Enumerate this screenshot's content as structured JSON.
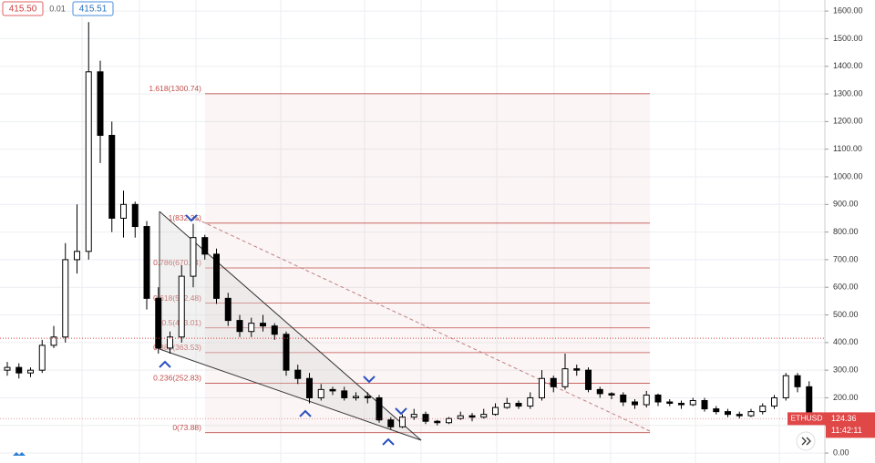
{
  "chart_data": {
    "type": "candlestick",
    "symbol": "ETHUSD",
    "header": {
      "bid": {
        "value": 415.5,
        "label": "415.50"
      },
      "spread": "0.01",
      "ask": {
        "value": 415.51,
        "label": "415.51"
      }
    },
    "last_price": {
      "value": 124.36,
      "label": "124.36"
    },
    "countdown": "11:42:11",
    "open": [
      300,
      310,
      290,
      300,
      390,
      420,
      700,
      730,
      1380,
      1150,
      850,
      900,
      820,
      560,
      380,
      420,
      640,
      780,
      720,
      560,
      480,
      440,
      470,
      460,
      430,
      300,
      270,
      200,
      230,
      225,
      200,
      205,
      200,
      120,
      95,
      130,
      140,
      115,
      110,
      125,
      135,
      130,
      140,
      165,
      180,
      170,
      200,
      270,
      240,
      305,
      300,
      230,
      215,
      210,
      185,
      175,
      210,
      185,
      180,
      175,
      190,
      160,
      150,
      140,
      135,
      150,
      170,
      200,
      280,
      240
    ],
    "high": [
      330,
      325,
      310,
      410,
      460,
      760,
      900,
      1560,
      1420,
      1200,
      950,
      910,
      840,
      600,
      440,
      680,
      830,
      790,
      740,
      580,
      500,
      490,
      500,
      470,
      440,
      320,
      290,
      250,
      240,
      240,
      220,
      220,
      210,
      130,
      140,
      160,
      150,
      120,
      130,
      150,
      145,
      160,
      180,
      200,
      190,
      220,
      300,
      280,
      360,
      320,
      310,
      240,
      220,
      220,
      195,
      225,
      215,
      195,
      190,
      200,
      200,
      170,
      160,
      150,
      160,
      180,
      210,
      290,
      290,
      260
    ],
    "low": [
      280,
      270,
      275,
      290,
      380,
      400,
      650,
      700,
      1050,
      800,
      780,
      780,
      520,
      360,
      360,
      400,
      600,
      700,
      540,
      460,
      420,
      420,
      440,
      410,
      280,
      250,
      180,
      190,
      210,
      190,
      190,
      180,
      110,
      85,
      90,
      120,
      105,
      100,
      105,
      120,
      115,
      125,
      135,
      160,
      160,
      160,
      190,
      220,
      230,
      280,
      220,
      200,
      195,
      170,
      160,
      165,
      170,
      170,
      160,
      170,
      150,
      140,
      130,
      125,
      130,
      140,
      160,
      190,
      220,
      110
    ],
    "close": [
      310,
      290,
      300,
      390,
      420,
      700,
      730,
      1380,
      1150,
      850,
      900,
      820,
      560,
      380,
      420,
      640,
      780,
      720,
      560,
      480,
      440,
      470,
      460,
      430,
      300,
      270,
      200,
      230,
      225,
      200,
      205,
      200,
      120,
      95,
      130,
      140,
      115,
      110,
      125,
      135,
      130,
      140,
      165,
      180,
      170,
      200,
      270,
      240,
      305,
      300,
      230,
      215,
      210,
      185,
      175,
      210,
      185,
      180,
      175,
      190,
      160,
      150,
      140,
      135,
      150,
      170,
      200,
      280,
      240,
      124
    ],
    "up_color": "#ffffff",
    "down_color": "#000000",
    "fib_color": "#c0504d",
    "fib_levels": [
      {
        "label": "1.618(1300.74)",
        "value": 1300.74
      },
      {
        "label": "1(832.35)",
        "value": 832.35
      },
      {
        "label": "0.786(670.04)",
        "value": 670.04
      },
      {
        "label": "0.618(542.48)",
        "value": 542.48
      },
      {
        "label": "0.5(453.01)",
        "value": 453.01
      },
      {
        "label": "0.382(363.53)",
        "value": 363.53
      },
      {
        "label": "0.236(252.83)",
        "value": 252.83
      },
      {
        "label": "0(73.88)",
        "value": 73.88
      }
    ],
    "ylim": [
      -36,
      1640
    ],
    "yticks": [
      {
        "value": 0,
        "label": "0.00"
      },
      {
        "value": 100,
        "label": "100.00"
      },
      {
        "value": 200,
        "label": "200.00"
      },
      {
        "value": 300,
        "label": "300.00"
      },
      {
        "value": 400,
        "label": "400.00"
      },
      {
        "value": 500,
        "label": "500.00"
      },
      {
        "value": 600,
        "label": "600.00"
      },
      {
        "value": 700,
        "label": "700.00"
      },
      {
        "value": 800,
        "label": "800.00"
      },
      {
        "value": 900,
        "label": "900.00"
      },
      {
        "value": 1000,
        "label": "1000.00"
      },
      {
        "value": 1100,
        "label": "1100.00"
      },
      {
        "value": 1200,
        "label": "1200.00"
      },
      {
        "value": 1300,
        "label": "1300.00"
      },
      {
        "value": 1400,
        "label": "1400.00"
      },
      {
        "value": 1500,
        "label": "1500.00"
      },
      {
        "value": 1600,
        "label": "1600.00"
      }
    ],
    "grid": true
  }
}
